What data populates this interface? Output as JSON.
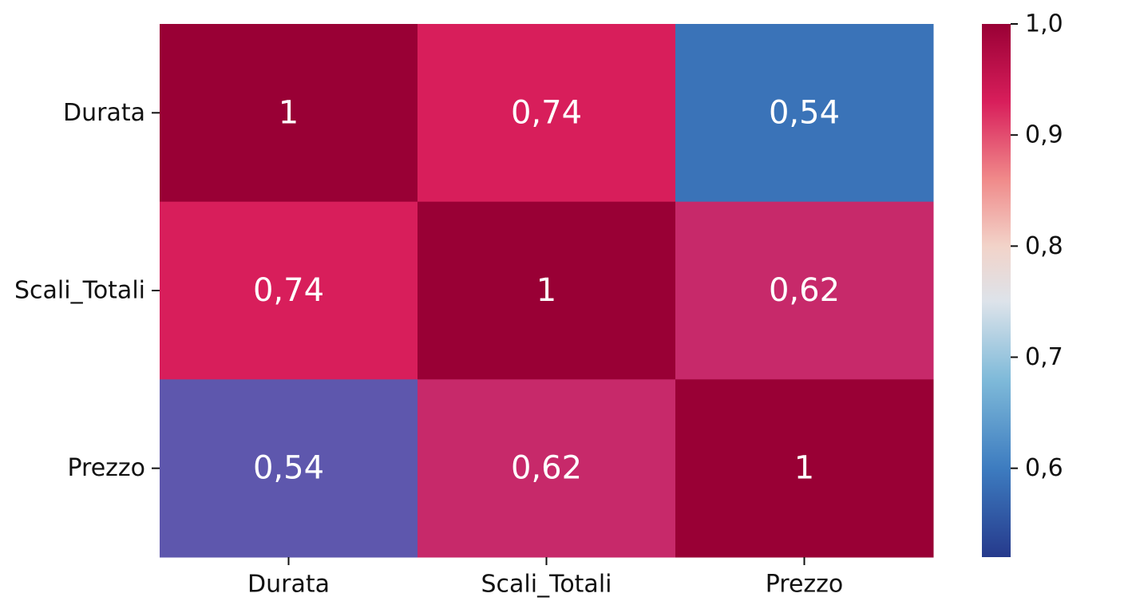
{
  "chart_data": {
    "type": "heatmap",
    "title": "",
    "xlabel": "",
    "ylabel": "",
    "x_categories": [
      "Durata",
      "Scali_Totali",
      "Prezzo"
    ],
    "y_categories": [
      "Durata",
      "Scali_Totali",
      "Prezzo"
    ],
    "values": [
      [
        1,
        0.74,
        0.54
      ],
      [
        0.74,
        1,
        0.62
      ],
      [
        0.54,
        0.62,
        1
      ]
    ],
    "cell_labels": [
      [
        "1",
        "0,74",
        "0,54"
      ],
      [
        "0,74",
        "1",
        "0,62"
      ],
      [
        "0,54",
        "0,62",
        "1"
      ]
    ],
    "cell_colors": [
      [
        "#990035",
        "#d81e5b",
        "#3a73b8"
      ],
      [
        "#d81e5b",
        "#990035",
        "#c7296a"
      ],
      [
        "#5e57ad",
        "#c7296a",
        "#990035"
      ]
    ],
    "colorbar": {
      "range": [
        0.52,
        1.0
      ],
      "ticks": [
        1.0,
        0.9,
        0.8,
        0.7,
        0.6
      ],
      "tick_labels": [
        "1,0",
        "0,9",
        "0,8",
        "0,7",
        "0,6"
      ],
      "colormap_stops": [
        {
          "value": 1.0,
          "color": "#990035"
        },
        {
          "value": 0.93,
          "color": "#d81e5b"
        },
        {
          "value": 0.86,
          "color": "#f08a8a"
        },
        {
          "value": 0.8,
          "color": "#f2d3c9"
        },
        {
          "value": 0.75,
          "color": "#dde3ea"
        },
        {
          "value": 0.68,
          "color": "#7fbad9"
        },
        {
          "value": 0.6,
          "color": "#3d7cc0"
        },
        {
          "value": 0.52,
          "color": "#263a8c"
        }
      ]
    },
    "grid": false,
    "legend": "colorbar-right"
  }
}
